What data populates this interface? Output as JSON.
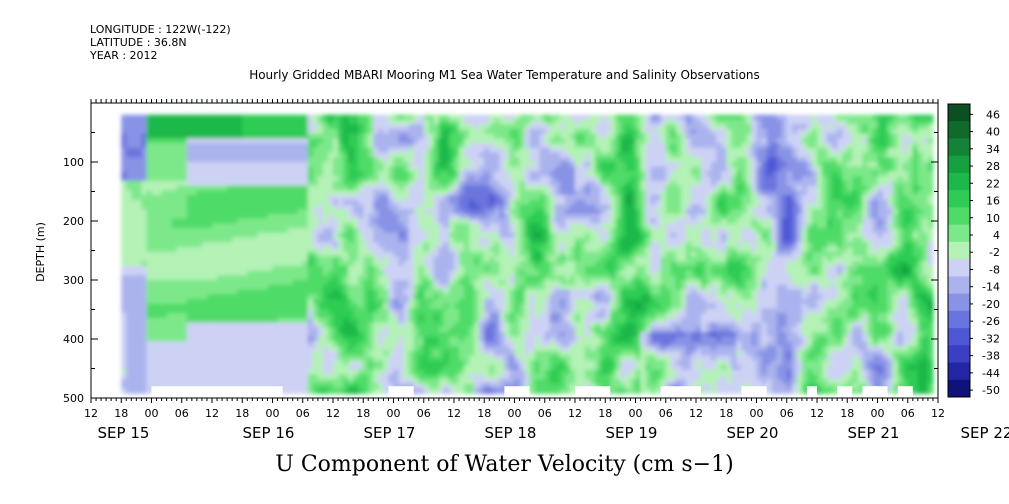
{
  "header": {
    "longitude": "LONGITUDE : 122W(-122)",
    "latitude": "LATITUDE : 36.8N",
    "year": "YEAR : 2012"
  },
  "chart_data": {
    "type": "heatmap",
    "title": "Hourly Gridded MBARI Mooring M1 Sea Water Temperature and Salinity Observations",
    "xlabel": "U Component of Water Velocity (cm s−1)",
    "ylabel": "DEPTH (m)",
    "ylim": [
      0,
      500
    ],
    "y_inverted": true,
    "y_ticks": [
      100,
      200,
      300,
      400,
      500
    ],
    "x_hour_labels": [
      "12",
      "18",
      "00",
      "06",
      "12",
      "18",
      "00",
      "06",
      "12",
      "18",
      "00",
      "06",
      "12",
      "18",
      "00",
      "06",
      "12",
      "18",
      "00",
      "06",
      "12",
      "18",
      "00",
      "06",
      "12",
      "18",
      "00",
      "06",
      "12"
    ],
    "x_day_labels": [
      "SEP 15",
      "SEP 16",
      "SEP 17",
      "SEP 18",
      "SEP 19",
      "SEP 20",
      "SEP 21",
      "SEP 22"
    ],
    "x_range_hours": [
      12,
      180
    ],
    "colorbar": {
      "labels": [
        "46",
        "40",
        "34",
        "28",
        "22",
        "16",
        "10",
        "4",
        "-2",
        "-8",
        "-14",
        "-20",
        "-26",
        "-32",
        "-38",
        "-44",
        "-50"
      ],
      "colors": [
        "#0b4f22",
        "#0f6a2c",
        "#138436",
        "#17a040",
        "#1db84a",
        "#2fcc55",
        "#4fdb67",
        "#7de88a",
        "#b4f2b6",
        "#cdd2f5",
        "#aab3ee",
        "#8893e6",
        "#6a74de",
        "#4f58d4",
        "#3a3fc4",
        "#2326a4",
        "#10127c"
      ]
    },
    "depth_range_data": [
      20,
      485
    ],
    "time_range_data_hours": [
      18,
      179
    ]
  }
}
